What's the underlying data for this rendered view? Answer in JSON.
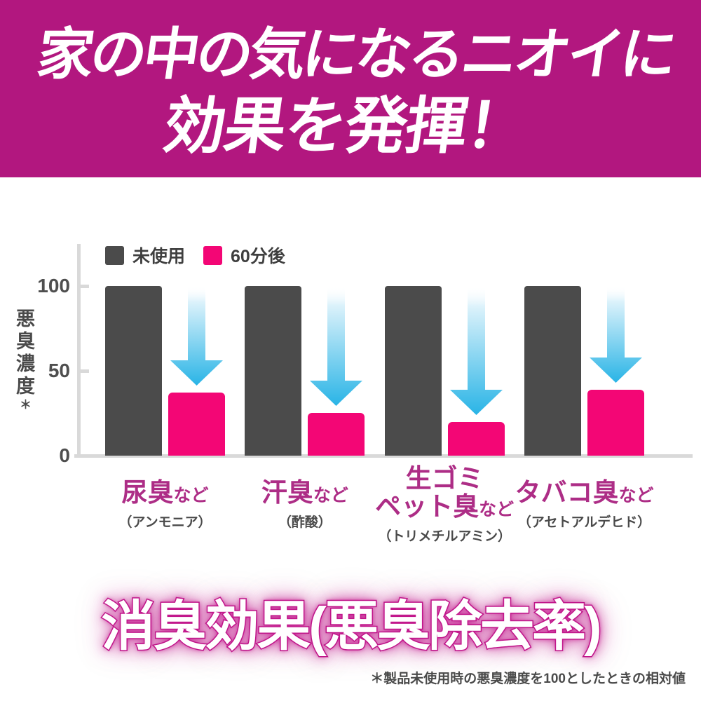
{
  "banner": {
    "line1": "家の中の気になるニオイに",
    "line2": "効果を発揮！",
    "bg_color": "#b2177f",
    "text_color": "#ffffff"
  },
  "chart_data": {
    "type": "bar",
    "ylabel": "悪臭濃度",
    "ylabel_note": "＊",
    "ylim": [
      0,
      100
    ],
    "yticks": [
      100,
      50,
      0
    ],
    "grid": false,
    "legend_position": "top-left",
    "legend": [
      {
        "label": "未使用",
        "color": "#4b4b4b"
      },
      {
        "label": "60分後",
        "color": "#f30675"
      }
    ],
    "categories": [
      {
        "line1": "",
        "main": "尿臭",
        "suffix": "など",
        "sub": "（アンモニア）"
      },
      {
        "line1": "",
        "main": "汗臭",
        "suffix": "など",
        "sub": "（酢酸）"
      },
      {
        "line1": "生ゴミ",
        "main": "ペット臭",
        "suffix": "など",
        "sub": "（トリメチルアミン）"
      },
      {
        "line1": "",
        "main": "タバコ臭",
        "suffix": "など",
        "sub": "（アセトアルデヒド）"
      }
    ],
    "series": [
      {
        "name": "未使用",
        "color": "#4b4b4b",
        "values": [
          100,
          100,
          100,
          100
        ]
      },
      {
        "name": "60分後",
        "color": "#f30675",
        "values": [
          37,
          25,
          20,
          39
        ]
      }
    ],
    "arrow_color_top": "#ffffff",
    "arrow_color_mid": "#dcf2fb",
    "arrow_color_bottom": "#29b4e6",
    "category_color": "#ad2d86",
    "sub_color": "#4a4a4a"
  },
  "footer": {
    "title": "消臭効果(悪臭除去率)",
    "title_color": "#ffffff",
    "title_outline": "#c2188c",
    "footnote": "＊製品未使用時の悪臭濃度を100としたときの相対値"
  }
}
